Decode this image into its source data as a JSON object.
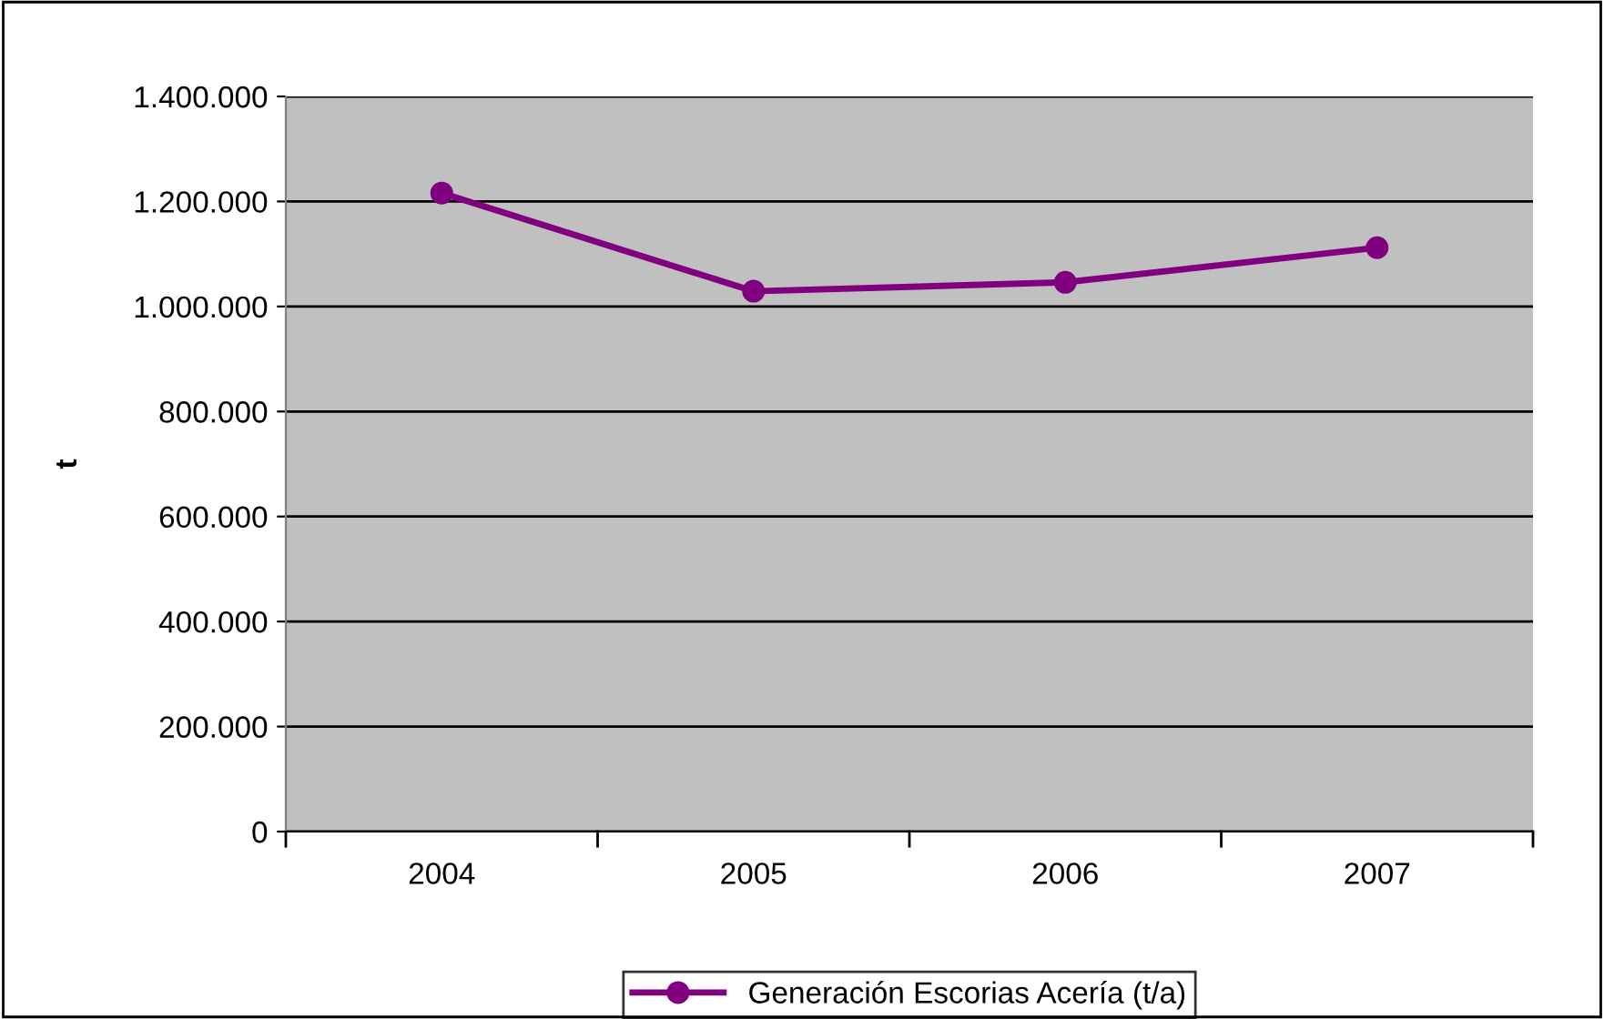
{
  "chart_data": {
    "type": "line",
    "ylabel": "t",
    "categories": [
      "2004",
      "2005",
      "2006",
      "2007"
    ],
    "series": [
      {
        "name": "Generación Escorias Acería (t/a)",
        "color": "#800080",
        "values": [
          1216000,
          1029000,
          1046000,
          1112000
        ]
      }
    ],
    "ylim": [
      0,
      1400000
    ],
    "yticks": [
      0,
      {
        "value": 200000,
        "label": "200.000"
      },
      {
        "value": 400000,
        "label": "400.000"
      },
      {
        "value": 600000,
        "label": "600.000"
      },
      {
        "value": 800000,
        "label": "800.000"
      },
      {
        "value": 1000000,
        "label": "1.000.000"
      },
      {
        "value": 1200000,
        "label": "1.200.000"
      },
      {
        "value": 1400000,
        "label": "1.400.000"
      }
    ],
    "grid": "y",
    "legend": "bottom",
    "marker": "circle",
    "line_style": "solid"
  }
}
